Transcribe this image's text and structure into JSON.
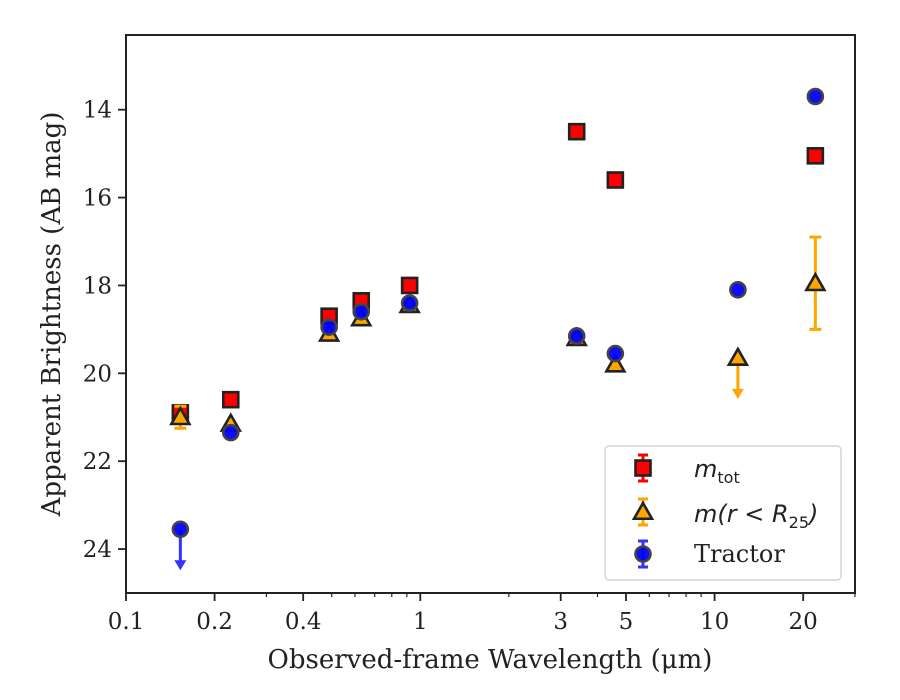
{
  "chart_data": {
    "type": "scatter",
    "title": "",
    "xlabel": "Observed-frame Wavelength (μm)",
    "ylabel": "Apparent Brightness (AB mag)",
    "x_scale": "log",
    "y_inverted": true,
    "xlim": [
      0.1,
      30
    ],
    "ylim": [
      25.0,
      12.3
    ],
    "xticks": [
      0.1,
      0.2,
      0.4,
      1,
      3,
      5,
      10,
      20
    ],
    "xtick_labels": [
      "0.1",
      "0.2",
      "0.4",
      "1",
      "3",
      "5",
      "10",
      "20"
    ],
    "yticks": [
      14,
      16,
      18,
      20,
      22,
      24
    ],
    "ytick_labels": [
      "14",
      "16",
      "18",
      "20",
      "22",
      "24"
    ],
    "grid": false,
    "legend_position": "bottom-right",
    "series": [
      {
        "key": "mtot",
        "legend_label": "m_tot",
        "marker": "square",
        "color": "#ff0000",
        "edge_color": "#222222",
        "points": [
          {
            "x": 0.153,
            "y": 20.9,
            "err": 0.15
          },
          {
            "x": 0.227,
            "y": 20.6,
            "err": 0.05
          },
          {
            "x": 0.49,
            "y": 18.7,
            "err": 0.05
          },
          {
            "x": 0.63,
            "y": 18.35,
            "err": 0.05
          },
          {
            "x": 0.92,
            "y": 18.0,
            "err": 0.05
          },
          {
            "x": 3.4,
            "y": 14.5,
            "err": 0.05
          },
          {
            "x": 4.6,
            "y": 15.6,
            "err": 0.05
          },
          {
            "x": 22.0,
            "y": 15.05,
            "err": 0.05
          }
        ]
      },
      {
        "key": "m_r25",
        "legend_label": "m(r < R25)",
        "marker": "triangle",
        "color": "#ffa500",
        "edge_color": "#222222",
        "points": [
          {
            "x": 0.153,
            "y": 21.0,
            "err": 0.25
          },
          {
            "x": 0.227,
            "y": 21.15,
            "err": 0.05
          },
          {
            "x": 0.49,
            "y": 19.1,
            "err": 0.05
          },
          {
            "x": 0.63,
            "y": 18.75,
            "err": 0.05
          },
          {
            "x": 0.92,
            "y": 18.45,
            "err": 0.05
          },
          {
            "x": 3.4,
            "y": 19.2,
            "err": 0.05
          },
          {
            "x": 4.6,
            "y": 19.8,
            "err": 0.05
          },
          {
            "x": 12.0,
            "y": 19.65,
            "upper_limit": true
          },
          {
            "x": 22.0,
            "y": 17.95,
            "err": 1.05
          }
        ]
      },
      {
        "key": "tractor",
        "legend_label": "Tractor",
        "marker": "circle",
        "color": "#0000ff",
        "edge_color": "#444444",
        "points": [
          {
            "x": 0.153,
            "y": 23.55,
            "upper_limit": true
          },
          {
            "x": 0.227,
            "y": 21.35,
            "err": 0.05
          },
          {
            "x": 0.49,
            "y": 18.95,
            "err": 0.05
          },
          {
            "x": 0.63,
            "y": 18.6,
            "err": 0.05
          },
          {
            "x": 0.92,
            "y": 18.4,
            "err": 0.05
          },
          {
            "x": 3.4,
            "y": 19.15,
            "err": 0.05
          },
          {
            "x": 4.6,
            "y": 19.55,
            "err": 0.05
          },
          {
            "x": 12.0,
            "y": 18.1,
            "err": 0.05
          },
          {
            "x": 22.0,
            "y": 13.7,
            "err": 0.05
          }
        ]
      }
    ]
  },
  "legend": {
    "tractor_label": "Tractor"
  }
}
